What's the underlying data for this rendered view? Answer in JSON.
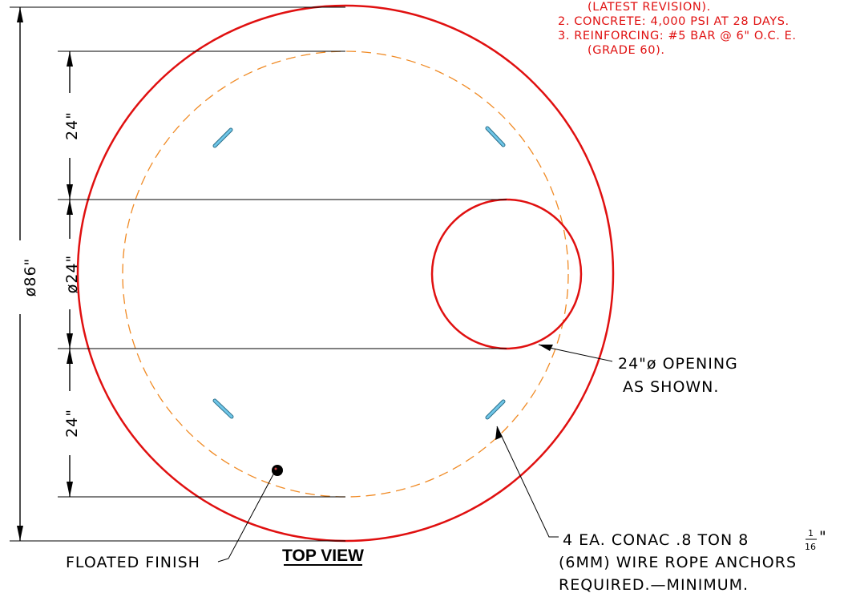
{
  "notes": {
    "line1": "(LATEST REVISION).",
    "line2": "2. CONCRETE: 4,000 PSI AT 28 DAYS.",
    "line3": "3. REINFORCING: #5 BAR @ 6\" O.C. E.",
    "line4": "(GRADE 60)."
  },
  "dimensions": {
    "overall": "ø86\"",
    "top": "24\"",
    "opening": "ø24\"",
    "bottom": "24\""
  },
  "callouts": {
    "opening_line1": "24\"ø OPENING",
    "opening_line2": "AS SHOWN.",
    "anchors_line1_a": "4 EA. CONAC .8 TON 8",
    "anchors_frac_num": "1",
    "anchors_frac_den": "16",
    "anchors_line1_b": "\"",
    "anchors_line2": "(6MM) WIRE ROPE ANCHORS",
    "anchors_line3": "REQUIRED.—MINIMUM.",
    "floated_finish": "FLOATED FINISH"
  },
  "title": "TOP VIEW",
  "colors": {
    "outline": "#e01010",
    "hidden_line": "#f08a24",
    "anchor": "#6fc6e8",
    "notes": "#e01010"
  }
}
